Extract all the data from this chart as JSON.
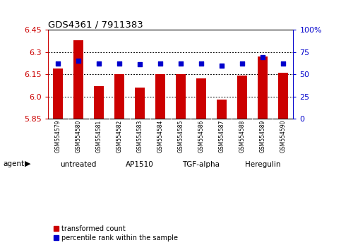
{
  "title": "GDS4361 / 7911383",
  "samples": [
    "GSM554579",
    "GSM554580",
    "GSM554581",
    "GSM554582",
    "GSM554583",
    "GSM554584",
    "GSM554585",
    "GSM554586",
    "GSM554587",
    "GSM554588",
    "GSM554589",
    "GSM554590"
  ],
  "bar_values": [
    6.19,
    6.38,
    6.07,
    6.15,
    6.06,
    6.15,
    6.15,
    6.12,
    5.98,
    6.14,
    6.27,
    6.16
  ],
  "percentile_values": [
    62,
    65,
    62,
    62,
    61,
    62,
    62,
    62,
    60,
    62,
    69,
    62
  ],
  "ylim": [
    5.85,
    6.45
  ],
  "yticks": [
    5.85,
    6.0,
    6.15,
    6.3,
    6.45
  ],
  "ylim_right": [
    0,
    100
  ],
  "yticks_right": [
    0,
    25,
    50,
    75,
    100
  ],
  "bar_color": "#CC0000",
  "dot_color": "#0000CC",
  "bar_width": 0.5,
  "agent_groups": [
    {
      "label": "untreated",
      "start": 0,
      "end": 3
    },
    {
      "label": "AP1510",
      "start": 3,
      "end": 6
    },
    {
      "label": "TGF-alpha",
      "start": 6,
      "end": 9
    },
    {
      "label": "Heregulin",
      "start": 9,
      "end": 12
    }
  ],
  "agent_label": "agent",
  "legend_items": [
    {
      "label": "transformed count",
      "color": "#CC0000"
    },
    {
      "label": "percentile rank within the sample",
      "color": "#0000CC"
    }
  ],
  "background_color": "#FFFFFF",
  "tick_area_color": "#C8C8C8",
  "agent_area_color": "#90EE90"
}
